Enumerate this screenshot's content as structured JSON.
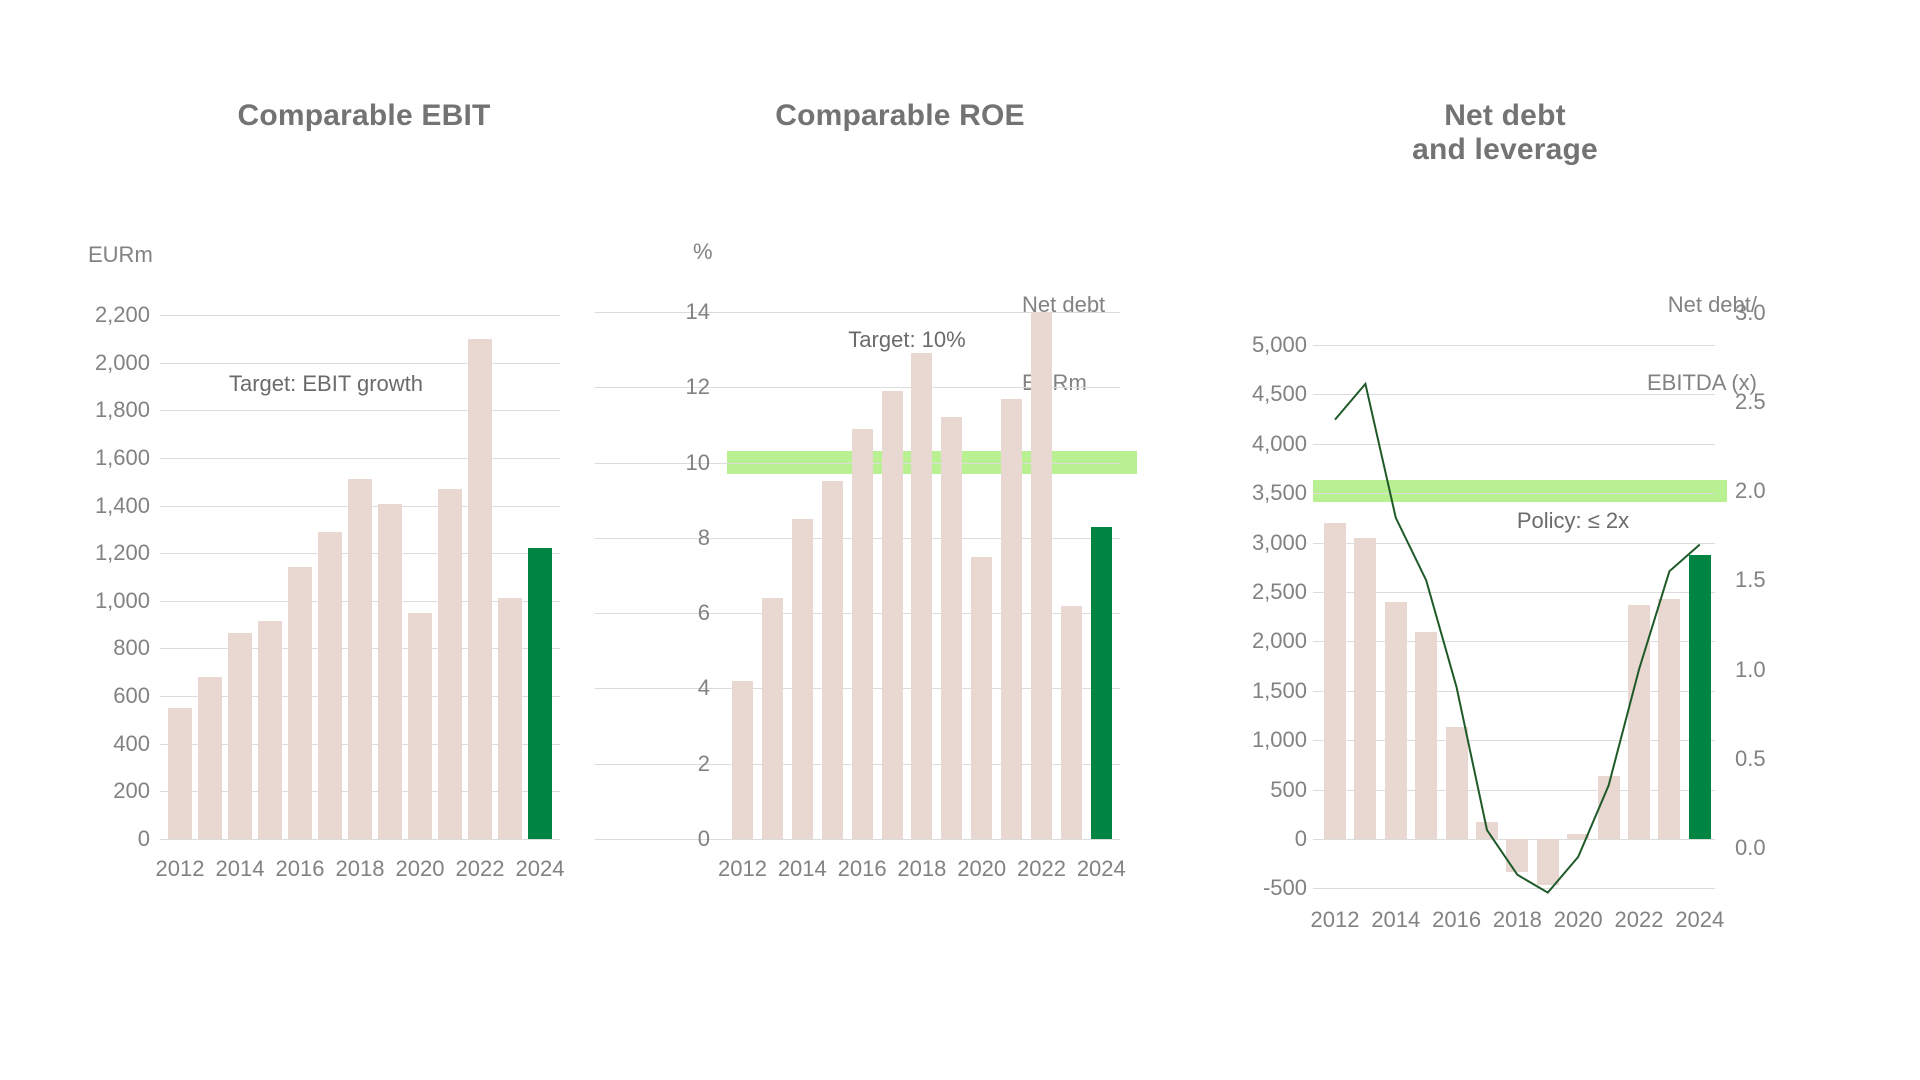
{
  "meta": {
    "colors": {
      "background": "#ffffff",
      "bar": "#e8d8d1",
      "highlight_bar": "#008442",
      "line": "#1e5a28",
      "band": "#b9f091",
      "grid": "#dcdcdc",
      "tick_text": "#828282",
      "title_text": "#737373",
      "annotation_text": "#6b6b6b"
    }
  },
  "chart_data": [
    {
      "type": "bar",
      "title": "Comparable EBIT",
      "ylabel": "EURm",
      "xlabel": "",
      "categories": [
        2012,
        2013,
        2014,
        2015,
        2016,
        2017,
        2018,
        2019,
        2020,
        2021,
        2022,
        2023,
        2024
      ],
      "values": [
        550,
        680,
        865,
        915,
        1140,
        1290,
        1510,
        1405,
        950,
        1470,
        2100,
        1010,
        1220
      ],
      "highlight_last": true,
      "annotation": "Target: EBIT growth",
      "ylim": [
        0,
        2200
      ],
      "ytick_step": 200,
      "ytick_labels": [
        "0",
        "200",
        "400",
        "600",
        "800",
        "1,000",
        "1,200",
        "1,400",
        "1,600",
        "1,800",
        "2,000",
        "2,200"
      ],
      "xtick_labels": [
        "2012",
        "2014",
        "2016",
        "2018",
        "2020",
        "2022",
        "2024"
      ],
      "grid": true,
      "legend_position": "none"
    },
    {
      "type": "bar",
      "title": "Comparable ROE",
      "ylabel": "%",
      "xlabel": "",
      "categories": [
        2012,
        2013,
        2014,
        2015,
        2016,
        2017,
        2018,
        2019,
        2020,
        2021,
        2022,
        2023,
        2024
      ],
      "values": [
        4.2,
        6.4,
        8.5,
        9.5,
        10.9,
        11.9,
        12.9,
        11.2,
        7.5,
        11.7,
        14.0,
        6.2,
        8.3
      ],
      "highlight_last": true,
      "annotation": "Target: 10%",
      "target_band": {
        "center": 10,
        "from": 9.7,
        "to": 10.3
      },
      "ylim": [
        0,
        14
      ],
      "ytick_step": 2,
      "ytick_labels": [
        "0",
        "2",
        "4",
        "6",
        "8",
        "10",
        "12",
        "14"
      ],
      "xtick_labels": [
        "2012",
        "2014",
        "2016",
        "2018",
        "2020",
        "2022",
        "2024"
      ],
      "grid": true,
      "legend_position": "none"
    },
    {
      "type": "bar+line",
      "title": "Net debt and leverage",
      "title_lines": [
        "Net debt",
        "and leverage"
      ],
      "ylabel_left_lines": [
        "Net debt",
        "EURm"
      ],
      "ylabel_right_lines": [
        "Net debt/",
        "EBITDA (x)"
      ],
      "categories": [
        2012,
        2013,
        2014,
        2015,
        2016,
        2017,
        2018,
        2019,
        2020,
        2021,
        2022,
        2023,
        2024
      ],
      "series": [
        {
          "name": "Net debt (EURm)",
          "type": "bar",
          "axis": "left",
          "values": [
            3200,
            3050,
            2400,
            2100,
            1130,
            170,
            -330,
            -470,
            50,
            640,
            2370,
            2430,
            2870
          ]
        },
        {
          "name": "Net debt/EBITDA (x)",
          "type": "line",
          "axis": "right",
          "values": [
            2.4,
            2.6,
            1.85,
            1.5,
            0.9,
            0.1,
            -0.15,
            -0.25,
            -0.05,
            0.35,
            1.0,
            1.55,
            1.7
          ]
        }
      ],
      "highlight_last": true,
      "annotation": "Policy: ≤ 2x",
      "target_band": {
        "axis": "right",
        "center": 2.0,
        "from": 1.94,
        "to": 2.06
      },
      "ylim_left": [
        -500,
        5000
      ],
      "ylim_right": [
        0.0,
        3.0
      ],
      "ytick_step_left": 500,
      "ytick_step_right": 0.5,
      "ytick_labels_left": [
        "5,000",
        "4,500",
        "4,000",
        "3,500",
        "3,000",
        "2,500",
        "2,000",
        "1,500",
        "1,000",
        "500",
        "0",
        "-500"
      ],
      "ytick_labels_right": [
        "3.0",
        "2.5",
        "2.0",
        "1.5",
        "1.0",
        "0.5",
        "0.0"
      ],
      "xtick_labels": [
        "2012",
        "2014",
        "2016",
        "2018",
        "2020",
        "2022",
        "2024"
      ],
      "grid": true,
      "legend_position": "none"
    }
  ]
}
